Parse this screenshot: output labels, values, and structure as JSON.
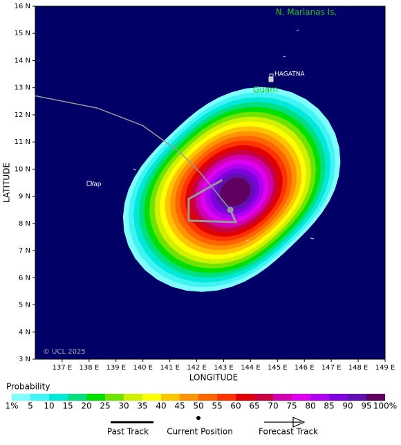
{
  "map": {
    "xlim": [
      136,
      149
    ],
    "ylim": [
      3,
      16
    ],
    "xticks": [
      {
        "value": 137,
        "label": "137 E"
      },
      {
        "value": 138,
        "label": "138 E"
      },
      {
        "value": 139,
        "label": "139 E"
      },
      {
        "value": 140,
        "label": "140 E"
      },
      {
        "value": 141,
        "label": "141 E"
      },
      {
        "value": 142,
        "label": "142 E"
      },
      {
        "value": 143,
        "label": "143 E"
      },
      {
        "value": 144,
        "label": "144 E"
      },
      {
        "value": 145,
        "label": "145 E"
      },
      {
        "value": 146,
        "label": "146 E"
      },
      {
        "value": 147,
        "label": "147 E"
      },
      {
        "value": 148,
        "label": "148 E"
      },
      {
        "value": 149,
        "label": "149 E"
      }
    ],
    "yticks": [
      {
        "value": 3,
        "label": "3 N"
      },
      {
        "value": 4,
        "label": "4 N"
      },
      {
        "value": 5,
        "label": "5 N"
      },
      {
        "value": 6,
        "label": "6 N"
      },
      {
        "value": 7,
        "label": "7 N"
      },
      {
        "value": 8,
        "label": "8 N"
      },
      {
        "value": 9,
        "label": "9 N"
      },
      {
        "value": 10,
        "label": "10 N"
      },
      {
        "value": 11,
        "label": "11 N"
      },
      {
        "value": 12,
        "label": "12 N"
      },
      {
        "value": 13,
        "label": "13 N"
      },
      {
        "value": 14,
        "label": "14 N"
      },
      {
        "value": 15,
        "label": "15 N"
      },
      {
        "value": 16,
        "label": "16 N"
      }
    ],
    "xlabel": "LONGITUDE",
    "ylabel": "LATITUDE",
    "place_labels": [
      "N. Marianas Is.",
      "HAGATNA",
      "Guam",
      "Yap"
    ],
    "copyright": "© UCL 2025",
    "past_track": {
      "lon": [
        136,
        138.3,
        140,
        141.4,
        142.1,
        142.6,
        143.25
      ],
      "lat": [
        12.7,
        12.25,
        11.6,
        10.6,
        9.9,
        9.3,
        8.5
      ]
    },
    "current_position": {
      "lon": 143.25,
      "lat": 8.5
    },
    "forecast_track": {
      "lon": [
        143.25,
        143.45,
        141.7,
        141.7,
        142.95
      ],
      "lat": [
        8.5,
        8.05,
        8.1,
        8.9,
        9.6
      ]
    }
  },
  "legend": {
    "title": "Probability",
    "levels": [
      {
        "value": 1,
        "label": "1%"
      },
      5,
      10,
      15,
      20,
      25,
      30,
      35,
      40,
      45,
      50,
      55,
      60,
      65,
      70,
      75,
      80,
      85,
      90,
      95,
      {
        "value": 100,
        "label": "100%"
      }
    ],
    "colors": [
      "#80ffff",
      "#40f4f4",
      "#00e8d8",
      "#00e080",
      "#00e000",
      "#70e400",
      "#d0f000",
      "#ffff00",
      "#ffc400",
      "#ff9400",
      "#ff6400",
      "#ff3400",
      "#e00000",
      "#c80040",
      "#d000b0",
      "#e000f0",
      "#b000f0",
      "#8000e0",
      "#6010b0",
      "#600060"
    ],
    "items": [
      "Past Track",
      "Current Position",
      "Forecast Track"
    ]
  }
}
